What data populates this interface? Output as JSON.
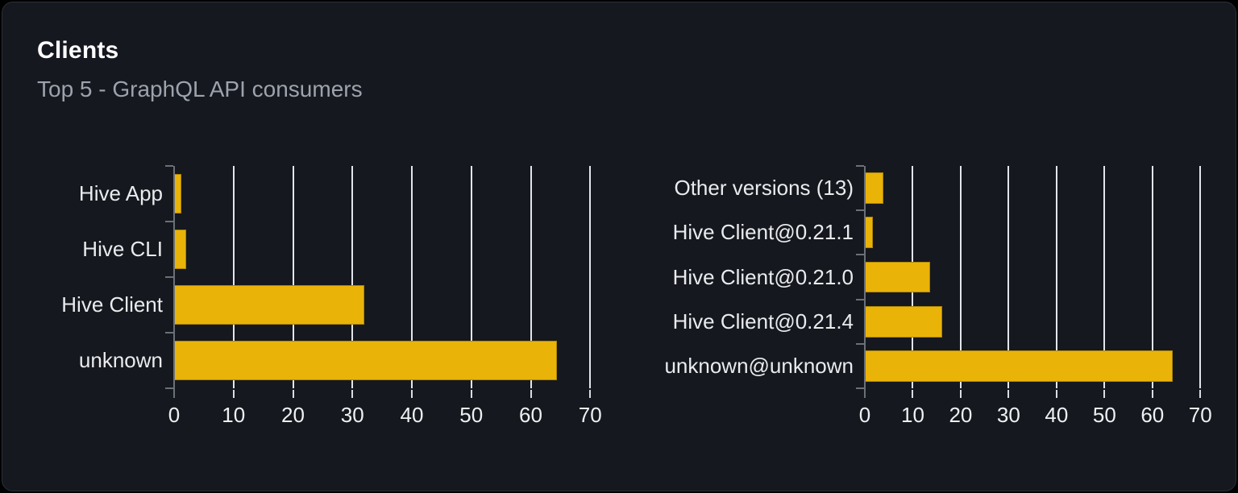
{
  "page": {
    "background": "#000000"
  },
  "card": {
    "title": "Clients",
    "subtitle": "Top 5 - GraphQL API consumers",
    "background": "#15181e",
    "border_color": "#2b2f36"
  },
  "colors": {
    "bar": "#eab308",
    "gridline": "#e2e5eb",
    "axis": "#6b7077",
    "tick": "#d9dde3",
    "label_text": "#e9ebee",
    "subtitle_text": "#9da3ad",
    "title_text": "#ffffff"
  },
  "chart_data": [
    {
      "type": "bar",
      "name": "clients",
      "orientation": "horizontal",
      "categories": [
        "Hive App",
        "Hive CLI",
        "Hive Client",
        "unknown"
      ],
      "values": [
        1.2,
        2.0,
        32.0,
        64.4
      ],
      "xlim": [
        0,
        72
      ],
      "xticks": [
        0,
        10,
        20,
        30,
        40,
        50,
        60,
        70
      ],
      "grid": true,
      "legend": false,
      "bar_color": "#eab308"
    },
    {
      "type": "bar",
      "name": "client-versions",
      "orientation": "horizontal",
      "categories": [
        "Other versions (13)",
        "Hive Client@0.21.1",
        "Hive Client@0.21.0",
        "Hive Client@0.21.4",
        "unknown@unknown"
      ],
      "values": [
        3.8,
        1.7,
        13.6,
        16.2,
        64.3
      ],
      "xlim": [
        0,
        75
      ],
      "xticks": [
        0,
        10,
        20,
        30,
        40,
        50,
        60,
        70
      ],
      "grid": true,
      "legend": false,
      "bar_color": "#eab308"
    }
  ]
}
